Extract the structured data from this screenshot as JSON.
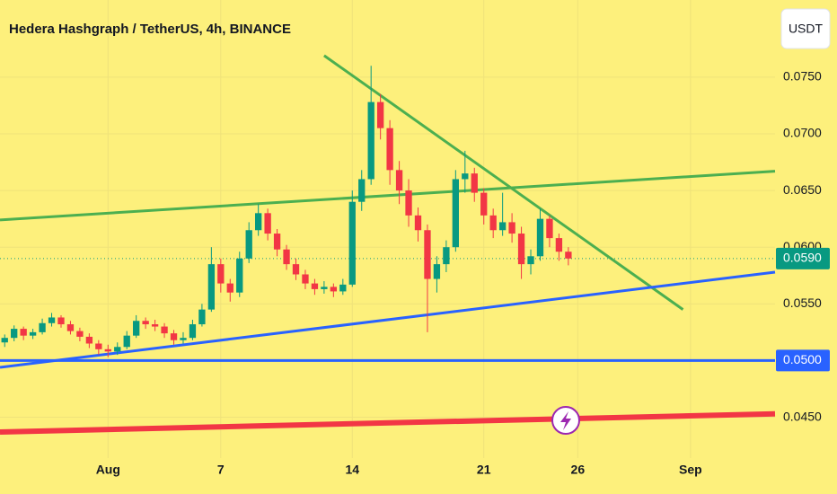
{
  "chart_data": {
    "type": "candlestick",
    "title": "Hedera Hashgraph / TetherUS, 4h, BINANCE",
    "currency_button": "USDT",
    "up_color": "#089981",
    "down_color": "#f23645",
    "ohlc": [
      [
        0.0516,
        0.0523,
        0.0512,
        0.052
      ],
      [
        0.052,
        0.0531,
        0.0517,
        0.0528
      ],
      [
        0.0528,
        0.053,
        0.0518,
        0.0522
      ],
      [
        0.0522,
        0.0528,
        0.0519,
        0.0525
      ],
      [
        0.0525,
        0.0537,
        0.0523,
        0.0533
      ],
      [
        0.0533,
        0.0542,
        0.053,
        0.0538
      ],
      [
        0.0538,
        0.054,
        0.0529,
        0.0532
      ],
      [
        0.0532,
        0.0535,
        0.0523,
        0.0526
      ],
      [
        0.0526,
        0.0529,
        0.0517,
        0.0521
      ],
      [
        0.0521,
        0.0524,
        0.0511,
        0.0515
      ],
      [
        0.0515,
        0.0518,
        0.0505,
        0.051
      ],
      [
        0.051,
        0.0514,
        0.0503,
        0.0508
      ],
      [
        0.0508,
        0.0516,
        0.0505,
        0.0512
      ],
      [
        0.0512,
        0.0526,
        0.051,
        0.0522
      ],
      [
        0.0522,
        0.054,
        0.052,
        0.0535
      ],
      [
        0.0535,
        0.0538,
        0.0528,
        0.0532
      ],
      [
        0.0532,
        0.0536,
        0.0526,
        0.053
      ],
      [
        0.053,
        0.0533,
        0.052,
        0.0524
      ],
      [
        0.0524,
        0.0527,
        0.0514,
        0.0518
      ],
      [
        0.0518,
        0.0525,
        0.0515,
        0.052
      ],
      [
        0.052,
        0.0536,
        0.0518,
        0.0532
      ],
      [
        0.0532,
        0.055,
        0.053,
        0.0545
      ],
      [
        0.0545,
        0.06,
        0.0543,
        0.0585
      ],
      [
        0.0585,
        0.059,
        0.056,
        0.0568
      ],
      [
        0.0568,
        0.0572,
        0.0552,
        0.056
      ],
      [
        0.056,
        0.0596,
        0.0556,
        0.059
      ],
      [
        0.059,
        0.0622,
        0.0586,
        0.0615
      ],
      [
        0.0615,
        0.0638,
        0.061,
        0.063
      ],
      [
        0.063,
        0.0634,
        0.0606,
        0.0612
      ],
      [
        0.0612,
        0.0616,
        0.0592,
        0.0598
      ],
      [
        0.0598,
        0.0602,
        0.058,
        0.0585
      ],
      [
        0.0585,
        0.059,
        0.0571,
        0.0576
      ],
      [
        0.0576,
        0.058,
        0.0563,
        0.0568
      ],
      [
        0.0568,
        0.0572,
        0.0558,
        0.0563
      ],
      [
        0.0563,
        0.057,
        0.0559,
        0.0565
      ],
      [
        0.0565,
        0.0568,
        0.0556,
        0.0561
      ],
      [
        0.0561,
        0.0572,
        0.0558,
        0.0567
      ],
      [
        0.0567,
        0.065,
        0.0565,
        0.064
      ],
      [
        0.064,
        0.0668,
        0.0632,
        0.066
      ],
      [
        0.066,
        0.076,
        0.0655,
        0.0728
      ],
      [
        0.0728,
        0.0735,
        0.0695,
        0.0705
      ],
      [
        0.0705,
        0.0712,
        0.0655,
        0.0668
      ],
      [
        0.0668,
        0.0676,
        0.0638,
        0.065
      ],
      [
        0.065,
        0.066,
        0.0618,
        0.0628
      ],
      [
        0.0628,
        0.0635,
        0.0605,
        0.0615
      ],
      [
        0.0615,
        0.062,
        0.0525,
        0.0572
      ],
      [
        0.0572,
        0.0592,
        0.056,
        0.0585
      ],
      [
        0.0585,
        0.0606,
        0.0578,
        0.06
      ],
      [
        0.06,
        0.0668,
        0.0596,
        0.066
      ],
      [
        0.066,
        0.0685,
        0.0648,
        0.0665
      ],
      [
        0.0665,
        0.067,
        0.064,
        0.0648
      ],
      [
        0.0648,
        0.0652,
        0.062,
        0.0628
      ],
      [
        0.0628,
        0.0634,
        0.0608,
        0.0615
      ],
      [
        0.0615,
        0.0648,
        0.061,
        0.0622
      ],
      [
        0.0622,
        0.063,
        0.0604,
        0.0612
      ],
      [
        0.0612,
        0.0618,
        0.0572,
        0.0585
      ],
      [
        0.0585,
        0.0598,
        0.0576,
        0.0592
      ],
      [
        0.0592,
        0.0634,
        0.0588,
        0.0625
      ],
      [
        0.0625,
        0.0628,
        0.06,
        0.0608
      ],
      [
        0.0608,
        0.0612,
        0.0588,
        0.0596
      ],
      [
        0.0596,
        0.06,
        0.0584,
        0.059
      ]
    ],
    "xlim": [
      -0.5,
      82
    ],
    "xticks": [
      {
        "value": 11,
        "label": "Aug"
      },
      {
        "value": 23,
        "label": "7"
      },
      {
        "value": 37,
        "label": "14"
      },
      {
        "value": 51,
        "label": "21"
      },
      {
        "value": 61,
        "label": "26"
      },
      {
        "value": 73,
        "label": "Sep"
      }
    ],
    "ylim": [
      0.0414,
      0.0818
    ],
    "yticks": [
      {
        "value": 0.045,
        "label": "0.0450"
      },
      {
        "value": 0.05,
        "label": "0.0500"
      },
      {
        "value": 0.055,
        "label": "0.0550"
      },
      {
        "value": 0.06,
        "label": "0.0600"
      },
      {
        "value": 0.065,
        "label": "0.0650"
      },
      {
        "value": 0.07,
        "label": "0.0700"
      },
      {
        "value": 0.075,
        "label": "0.0750"
      }
    ],
    "grid": true,
    "trendlines": [
      {
        "color": "#4caf50",
        "points": [
          [
            -0.5,
            0.0624
          ],
          [
            82,
            0.0667
          ]
        ]
      },
      {
        "color": "#4caf50",
        "points": [
          [
            34,
            0.0769
          ],
          [
            72.2,
            0.0545
          ]
        ]
      },
      {
        "color": "#2962ff",
        "points": [
          [
            -0.5,
            0.0494
          ],
          [
            82,
            0.0578
          ]
        ]
      },
      {
        "color": "#f23645",
        "points": [
          [
            -0.5,
            0.0437
          ],
          [
            82,
            0.0453
          ]
        ]
      }
    ],
    "horizontal_line": {
      "value": 0.05,
      "label": "0.0500",
      "color": "#2962ff"
    },
    "current_price": {
      "value": 0.059,
      "label": "0.0590",
      "color": "#089981"
    }
  }
}
